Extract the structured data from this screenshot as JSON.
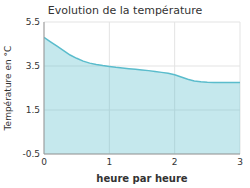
{
  "chart_data": {
    "type": "area",
    "title": "Evolution de la température",
    "xlabel": "heure par heure",
    "ylabel": "Température en °C",
    "x": [
      0,
      0.1,
      0.2,
      0.3,
      0.4,
      0.5,
      0.6,
      0.7,
      0.8,
      0.9,
      1.0,
      1.1,
      1.2,
      1.3,
      1.4,
      1.5,
      1.6,
      1.7,
      1.8,
      1.9,
      2.0,
      2.1,
      2.2,
      2.3,
      2.4,
      2.5,
      2.6,
      2.7,
      2.8,
      2.9,
      3.0
    ],
    "values": [
      4.8,
      4.6,
      4.4,
      4.2,
      4.0,
      3.85,
      3.72,
      3.63,
      3.57,
      3.52,
      3.48,
      3.44,
      3.41,
      3.38,
      3.35,
      3.32,
      3.29,
      3.25,
      3.21,
      3.17,
      3.1,
      3.0,
      2.9,
      2.82,
      2.78,
      2.76,
      2.75,
      2.75,
      2.75,
      2.75,
      2.75
    ],
    "color": "#5abccc",
    "xlim": [
      0,
      3
    ],
    "ylim": [
      -0.5,
      5.5
    ],
    "xticks": [
      0,
      1,
      2,
      3
    ],
    "yticks": [
      -0.5,
      1.5,
      3.5,
      5.5
    ],
    "grid": true
  }
}
